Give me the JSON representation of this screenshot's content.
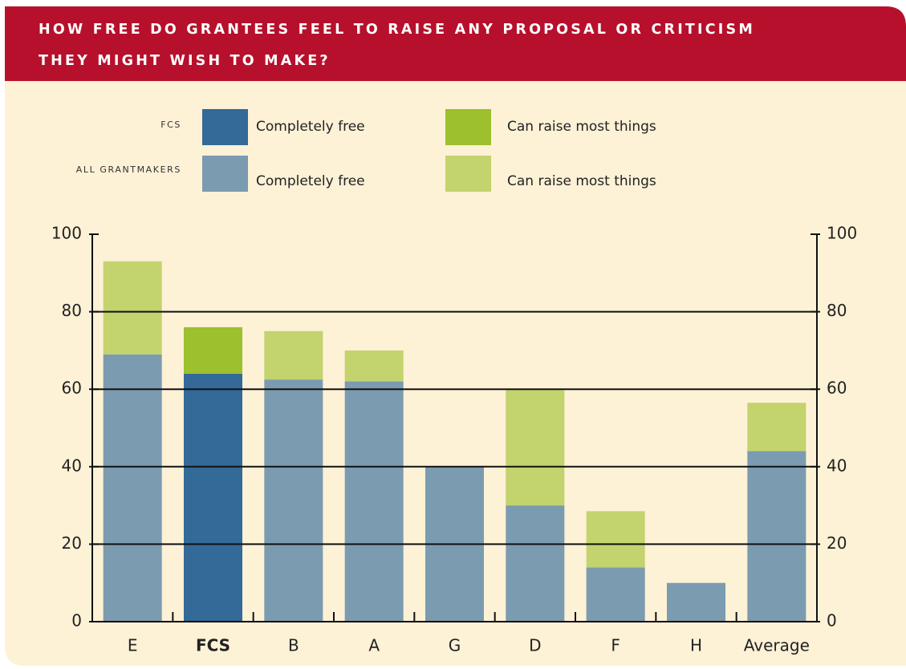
{
  "chart_data": {
    "type": "bar",
    "stacked": true,
    "title": [
      "HOW FREE DO GRANTEES FEEL TO RAISE ANY PROPOSAL OR CRITICISM",
      "THEY MIGHT WISH TO MAKE?"
    ],
    "legend_groups": [
      "FCS",
      "ALL GRANTMAKERS"
    ],
    "highlight_category": "FCS",
    "categories": [
      "E",
      "FCS",
      "B",
      "A",
      "G",
      "D",
      "F",
      "H",
      "Average"
    ],
    "series": [
      {
        "name": "Completely free",
        "color": "#7b9bb0",
        "highlight_color": "#336a98",
        "values": [
          69,
          64,
          62.5,
          62,
          40,
          30,
          14,
          10,
          44
        ]
      },
      {
        "name": "Can raise most things",
        "color": "#c3d36d",
        "highlight_color": "#9cc02e",
        "values": [
          24,
          12,
          12.5,
          8,
          0,
          30,
          14.5,
          0,
          12.5
        ]
      }
    ],
    "ylim": [
      0,
      100
    ],
    "yticks": [
      0,
      20,
      40,
      60,
      80,
      100
    ],
    "grid": true
  }
}
